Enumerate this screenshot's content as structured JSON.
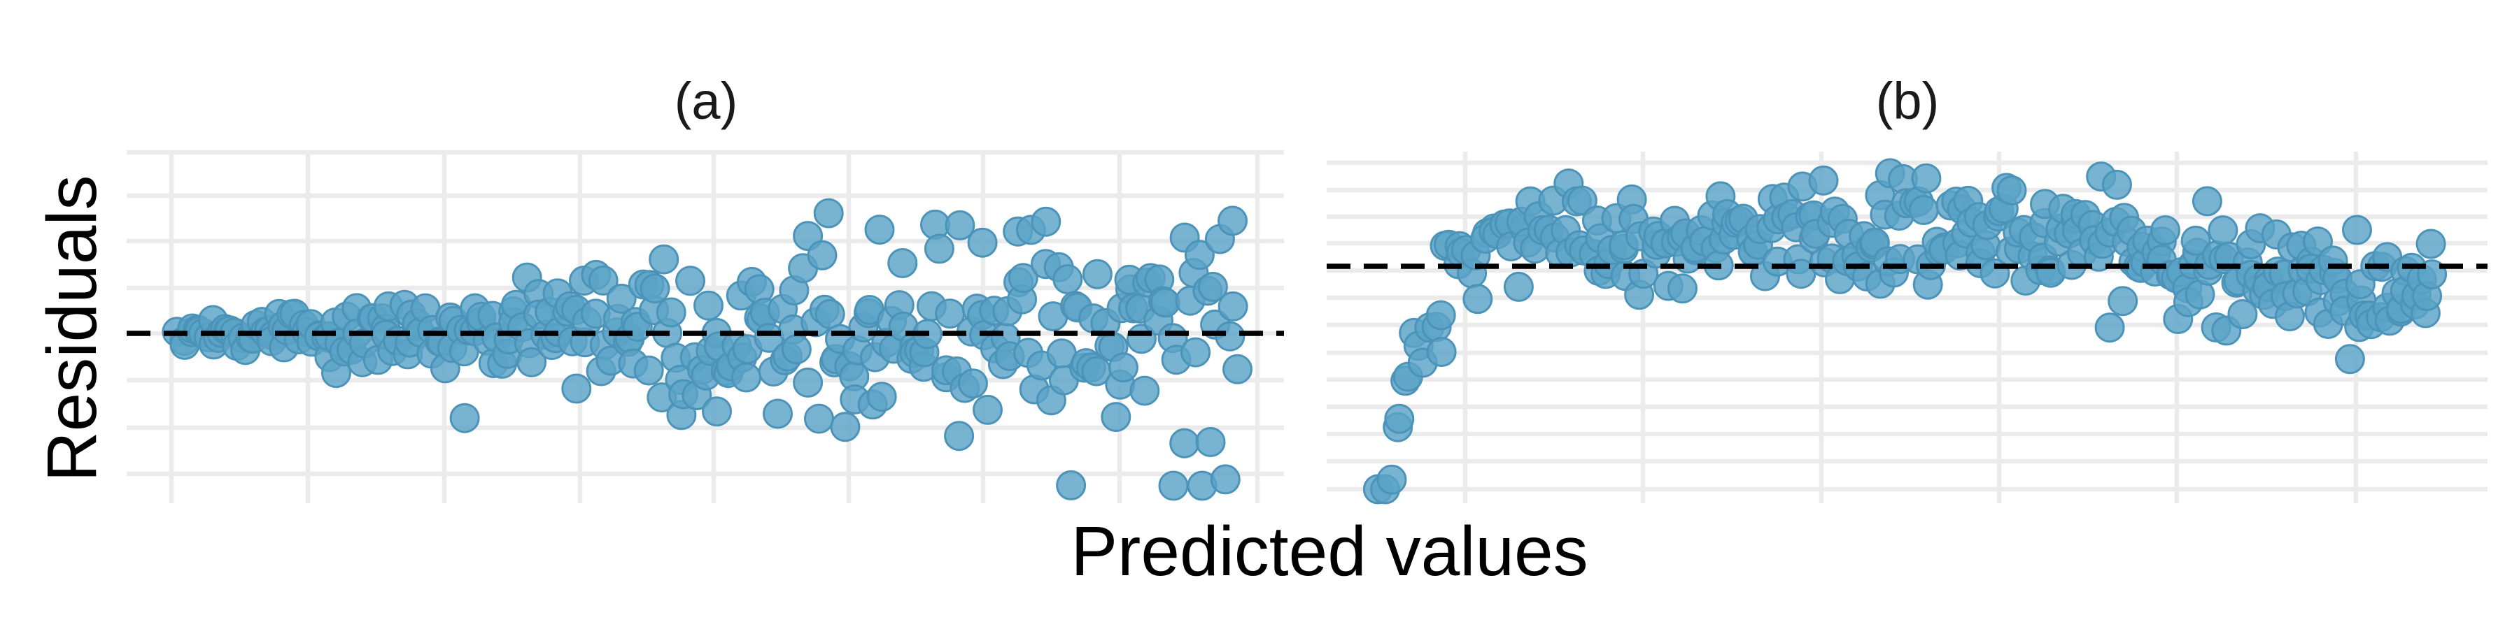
{
  "chart_data": [
    {
      "type": "scatter",
      "title": "(a)",
      "description": "",
      "color": "#5aa3c7",
      "pattern": "fan",
      "x": [],
      "y": []
    },
    {
      "type": "scatter",
      "title": "(b)",
      "color": "#5aa3c7",
      "pattern": "curved",
      "x": [],
      "y": []
    }
  ],
  "shared": {
    "xlabel": "Predicted values",
    "ylabel": "Residuals",
    "reference_line": "dashed horizontal line at residual = 0",
    "grid": true,
    "tick_labels_shown": false
  }
}
